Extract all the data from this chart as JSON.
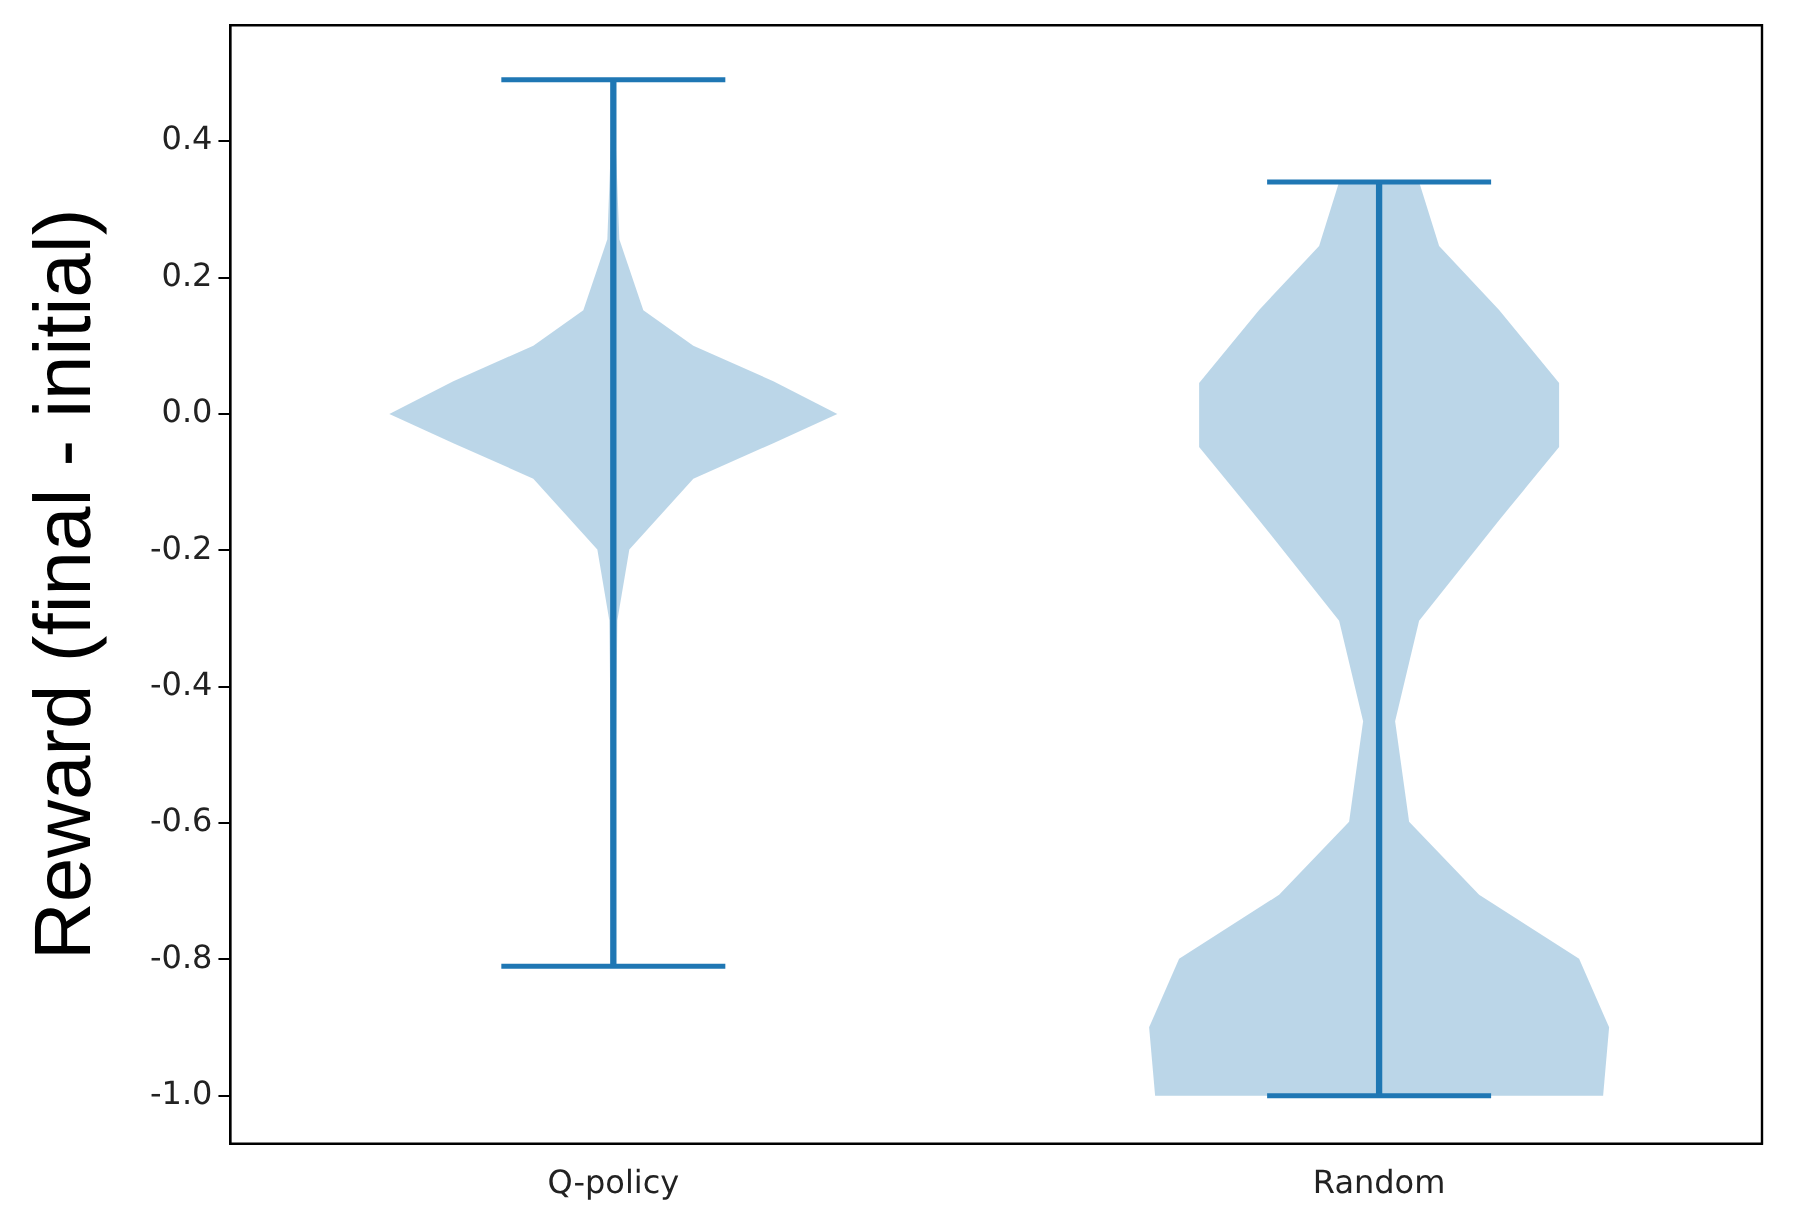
{
  "chart_data": {
    "type": "bar",
    "ylabel": "Reward (final - initial)",
    "categories": [
      "Q-policy",
      "Random"
    ],
    "color": "#1f77b4",
    "base": [
      -0.81,
      -1.0
    ],
    "values": [
      1.3,
      1.34
    ],
    "ylim": [
      -1.07,
      0.57
    ],
    "yticks": [
      {
        "value": -1.0,
        "label": "-1.0"
      },
      -0.8,
      -0.6,
      -0.4,
      -0.2,
      {
        "value": 0,
        "label": "0.0"
      },
      0.2,
      0.4
    ]
  }
}
